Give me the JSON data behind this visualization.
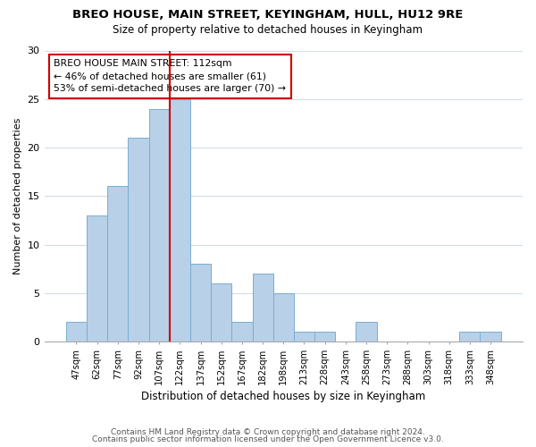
{
  "title": "BREO HOUSE, MAIN STREET, KEYINGHAM, HULL, HU12 9RE",
  "subtitle": "Size of property relative to detached houses in Keyingham",
  "xlabel": "Distribution of detached houses by size in Keyingham",
  "ylabel": "Number of detached properties",
  "bar_labels": [
    "47sqm",
    "62sqm",
    "77sqm",
    "92sqm",
    "107sqm",
    "122sqm",
    "137sqm",
    "152sqm",
    "167sqm",
    "182sqm",
    "198sqm",
    "213sqm",
    "228sqm",
    "243sqm",
    "258sqm",
    "273sqm",
    "288sqm",
    "303sqm",
    "318sqm",
    "333sqm",
    "348sqm"
  ],
  "bar_values": [
    2,
    13,
    16,
    21,
    24,
    25,
    8,
    6,
    2,
    7,
    5,
    1,
    1,
    0,
    2,
    0,
    0,
    0,
    0,
    1,
    1
  ],
  "bar_color": "#b8d0e8",
  "bar_edge_color": "#7aaed0",
  "vline_x": 4.5,
  "vline_color": "#cc0000",
  "annotation_text": "BREO HOUSE MAIN STREET: 112sqm\n← 46% of detached houses are smaller (61)\n53% of semi-detached houses are larger (70) →",
  "annotation_box_color": "#ffffff",
  "annotation_box_edge": "#cc0000",
  "ylim": [
    0,
    30
  ],
  "yticks": [
    0,
    5,
    10,
    15,
    20,
    25,
    30
  ],
  "footer1": "Contains HM Land Registry data © Crown copyright and database right 2024.",
  "footer2": "Contains public sector information licensed under the Open Government Licence v3.0.",
  "background_color": "#ffffff",
  "grid_color": "#d0dce8"
}
